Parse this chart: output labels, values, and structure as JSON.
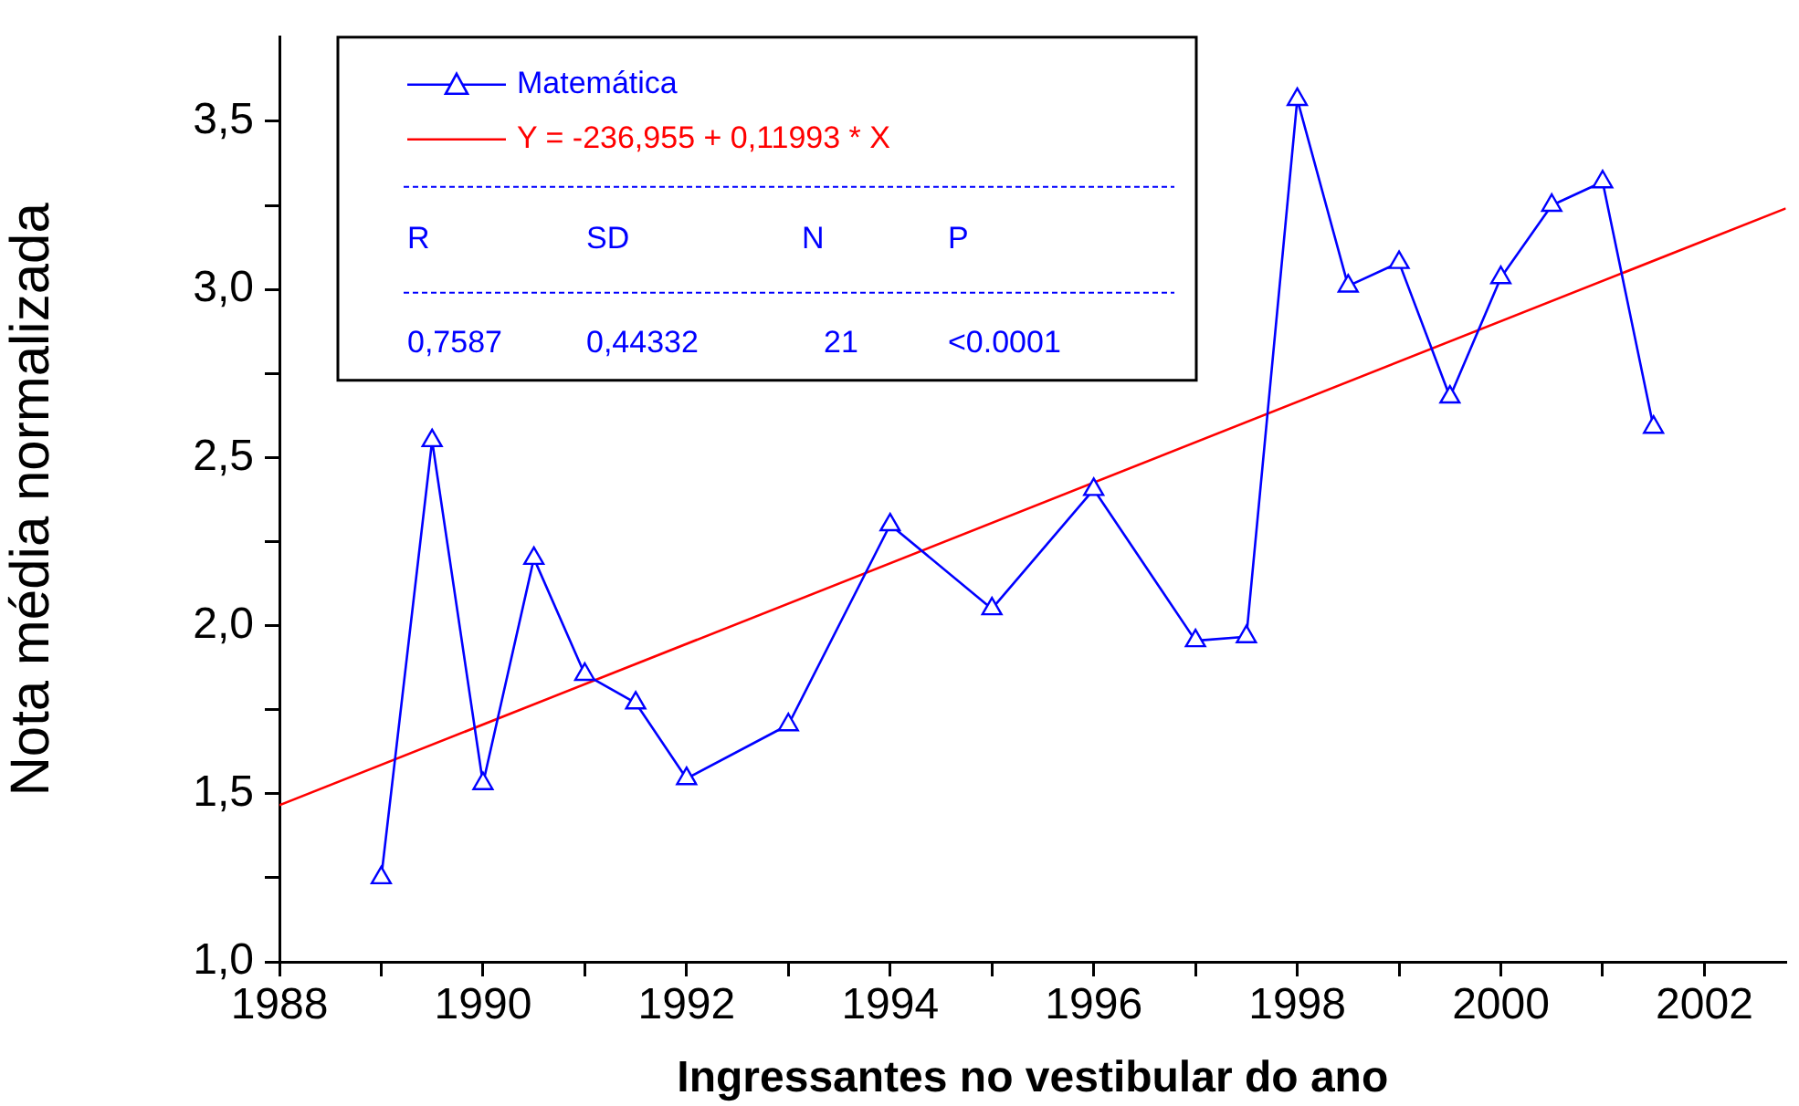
{
  "chart_data": {
    "type": "line",
    "xlabel": "Ingressantes no vestibular do ano",
    "ylabel": "Nota média normalizada",
    "xlim": [
      1988,
      2002.8
    ],
    "ylim": [
      1.0,
      3.75
    ],
    "xticks": [
      1988,
      {
        "value": 1989,
        "label": null
      },
      1990,
      {
        "value": 1991,
        "label": null
      },
      1992,
      {
        "value": 1993,
        "label": null
      },
      1994,
      {
        "value": 1995,
        "label": null
      },
      1996,
      {
        "value": 1997,
        "label": null
      },
      1998,
      {
        "value": 1999,
        "label": null
      },
      2000,
      {
        "value": 2001,
        "label": null
      },
      2002
    ],
    "yticks": [
      {
        "value": 1.0,
        "label": "1,0"
      },
      {
        "value": 1.25,
        "label": null
      },
      {
        "value": 1.5,
        "label": "1,5"
      },
      {
        "value": 1.75,
        "label": null
      },
      {
        "value": 2.0,
        "label": "2,0"
      },
      {
        "value": 2.25,
        "label": null
      },
      {
        "value": 2.5,
        "label": "2,5"
      },
      {
        "value": 2.75,
        "label": null
      },
      {
        "value": 3.0,
        "label": "3,0"
      },
      {
        "value": 3.25,
        "label": null
      },
      {
        "value": 3.5,
        "label": "3,5"
      }
    ],
    "grid": false,
    "legend": "top left",
    "series": [
      {
        "name": "Matemática",
        "color": "#0000ff",
        "marker": "triangle",
        "x": [
          1989,
          1989.5,
          1990,
          1990.5,
          1991,
          1991.5,
          1992,
          1993,
          1994,
          1995,
          1996,
          1997,
          1997.5,
          1998,
          1998.5,
          1999,
          1999.5,
          2000,
          2000.5,
          2001,
          2001.5
        ],
        "values": [
          1.25,
          2.55,
          1.53,
          2.2,
          1.855,
          1.77,
          1.545,
          1.705,
          2.3,
          2.05,
          2.405,
          1.955,
          1.967,
          3.565,
          3.01,
          3.08,
          2.68,
          3.035,
          3.25,
          3.32,
          2.59
        ]
      },
      {
        "name": "Y = -236,955 + 0,11993 * X",
        "color": "#ff0000",
        "marker": "none",
        "x": [
          1988,
          2002.8
        ],
        "values": [
          1.466,
          3.241
        ]
      }
    ],
    "annotations": [
      "R",
      "SD",
      "N",
      "P",
      "0,7587",
      "0,44332",
      "21",
      "<0.0001"
    ]
  }
}
